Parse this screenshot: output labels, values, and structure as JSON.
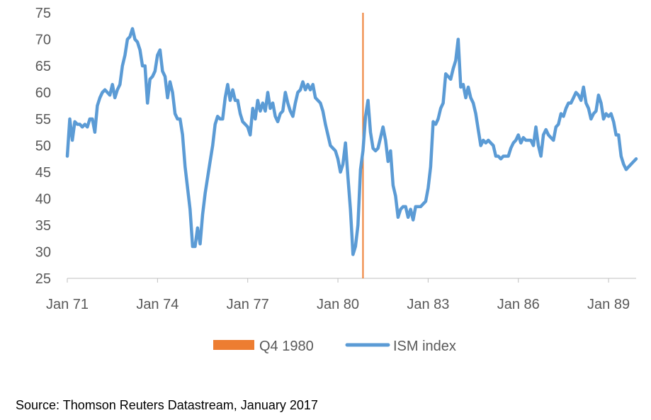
{
  "chart_data": {
    "type": "line",
    "title": "",
    "xlabel": "",
    "ylabel": "",
    "ylim": [
      25,
      75
    ],
    "y_ticks": [
      25,
      30,
      35,
      40,
      45,
      50,
      55,
      60,
      65,
      70,
      75
    ],
    "x_tick_labels": [
      "Jan 71",
      "Jan 74",
      "Jan 77",
      "Jan 80",
      "Jan 83",
      "Jan 86",
      "Jan 89"
    ],
    "x_ticks": [
      "1971-01",
      "1974-01",
      "1977-01",
      "1980-01",
      "1983-01",
      "1986-01",
      "1989-01"
    ],
    "x_range": [
      "1971-01",
      "1989-12"
    ],
    "grid": false,
    "legend": "bottom",
    "series": [
      {
        "name": "ISM index",
        "color": "#5B9BD5",
        "points": [
          [
            "1971-01",
            48
          ],
          [
            "1971-02",
            55
          ],
          [
            "1971-03",
            51
          ],
          [
            "1971-04",
            54.5
          ],
          [
            "1971-05",
            54
          ],
          [
            "1971-06",
            54
          ],
          [
            "1971-07",
            53.5
          ],
          [
            "1971-08",
            54
          ],
          [
            "1971-09",
            53.5
          ],
          [
            "1971-10",
            55
          ],
          [
            "1971-11",
            55
          ],
          [
            "1971-12",
            52.5
          ],
          [
            "1972-01",
            57.5
          ],
          [
            "1972-02",
            59
          ],
          [
            "1972-03",
            60
          ],
          [
            "1972-04",
            60.5
          ],
          [
            "1972-05",
            60
          ],
          [
            "1972-06",
            59.5
          ],
          [
            "1972-07",
            61.5
          ],
          [
            "1972-08",
            59
          ],
          [
            "1972-09",
            60.5
          ],
          [
            "1972-10",
            61.5
          ],
          [
            "1972-11",
            65
          ],
          [
            "1972-12",
            67
          ],
          [
            "1973-01",
            70
          ],
          [
            "1973-02",
            70.5
          ],
          [
            "1973-03",
            72
          ],
          [
            "1973-04",
            70
          ],
          [
            "1973-05",
            69.5
          ],
          [
            "1973-06",
            68
          ],
          [
            "1973-07",
            65
          ],
          [
            "1973-08",
            65
          ],
          [
            "1973-09",
            58
          ],
          [
            "1973-10",
            62.5
          ],
          [
            "1973-11",
            63
          ],
          [
            "1973-12",
            64
          ],
          [
            "1974-01",
            67
          ],
          [
            "1974-02",
            68
          ],
          [
            "1974-03",
            64
          ],
          [
            "1974-04",
            63
          ],
          [
            "1974-05",
            59
          ],
          [
            "1974-06",
            62
          ],
          [
            "1974-07",
            60
          ],
          [
            "1974-08",
            56
          ],
          [
            "1974-09",
            55
          ],
          [
            "1974-10",
            55
          ],
          [
            "1974-11",
            52
          ],
          [
            "1974-12",
            46
          ],
          [
            "1975-01",
            42
          ],
          [
            "1975-02",
            38
          ],
          [
            "1975-03",
            31
          ],
          [
            "1975-04",
            31
          ],
          [
            "1975-05",
            34.5
          ],
          [
            "1975-06",
            31.5
          ],
          [
            "1975-07",
            37
          ],
          [
            "1975-08",
            41
          ],
          [
            "1975-09",
            44
          ],
          [
            "1975-10",
            47
          ],
          [
            "1975-11",
            50
          ],
          [
            "1975-12",
            54
          ],
          [
            "1976-01",
            55.5
          ],
          [
            "1976-02",
            55
          ],
          [
            "1976-03",
            55
          ],
          [
            "1976-04",
            59
          ],
          [
            "1976-05",
            61.5
          ],
          [
            "1976-06",
            58.5
          ],
          [
            "1976-07",
            60.5
          ],
          [
            "1976-08",
            58.5
          ],
          [
            "1976-09",
            58.5
          ],
          [
            "1976-10",
            56
          ],
          [
            "1976-11",
            54.5
          ],
          [
            "1976-12",
            54
          ],
          [
            "1977-01",
            53.5
          ],
          [
            "1977-02",
            52
          ],
          [
            "1977-03",
            57
          ],
          [
            "1977-04",
            55
          ],
          [
            "1977-05",
            58.5
          ],
          [
            "1977-06",
            56.5
          ],
          [
            "1977-07",
            58
          ],
          [
            "1977-08",
            56.5
          ],
          [
            "1977-09",
            60
          ],
          [
            "1977-10",
            57
          ],
          [
            "1977-11",
            58
          ],
          [
            "1977-12",
            55.5
          ],
          [
            "1978-01",
            54.5
          ],
          [
            "1978-02",
            56
          ],
          [
            "1978-03",
            56.5
          ],
          [
            "1978-04",
            60
          ],
          [
            "1978-05",
            58
          ],
          [
            "1978-06",
            56.5
          ],
          [
            "1978-07",
            55.5
          ],
          [
            "1978-08",
            58
          ],
          [
            "1978-09",
            60
          ],
          [
            "1978-10",
            60.5
          ],
          [
            "1978-11",
            62
          ],
          [
            "1978-12",
            60.5
          ],
          [
            "1979-01",
            61.5
          ],
          [
            "1979-02",
            60.5
          ],
          [
            "1979-03",
            61.5
          ],
          [
            "1979-04",
            59
          ],
          [
            "1979-05",
            58.5
          ],
          [
            "1979-06",
            58
          ],
          [
            "1979-07",
            56.5
          ],
          [
            "1979-08",
            54
          ],
          [
            "1979-09",
            52
          ],
          [
            "1979-10",
            50
          ],
          [
            "1979-11",
            49.5
          ],
          [
            "1979-12",
            49
          ],
          [
            "1980-01",
            47.5
          ],
          [
            "1980-02",
            45
          ],
          [
            "1980-03",
            46.5
          ],
          [
            "1980-04",
            50.5
          ],
          [
            "1980-05",
            44
          ],
          [
            "1980-06",
            38
          ],
          [
            "1980-07",
            29.5
          ],
          [
            "1980-08",
            31
          ],
          [
            "1980-09",
            35
          ],
          [
            "1980-10",
            45.5
          ],
          [
            "1980-11",
            49
          ],
          [
            "1980-12",
            55.5
          ],
          [
            "1981-01",
            58.5
          ],
          [
            "1981-02",
            52.5
          ],
          [
            "1981-03",
            49.5
          ],
          [
            "1981-04",
            49
          ],
          [
            "1981-05",
            49.5
          ],
          [
            "1981-06",
            51.5
          ],
          [
            "1981-07",
            53.5
          ],
          [
            "1981-08",
            51
          ],
          [
            "1981-09",
            47
          ],
          [
            "1981-10",
            49
          ],
          [
            "1981-11",
            42.5
          ],
          [
            "1981-12",
            40.5
          ],
          [
            "1982-01",
            36.5
          ],
          [
            "1982-02",
            38
          ],
          [
            "1982-03",
            38.5
          ],
          [
            "1982-04",
            38.5
          ],
          [
            "1982-05",
            36.5
          ],
          [
            "1982-06",
            38
          ],
          [
            "1982-07",
            36
          ],
          [
            "1982-08",
            38.5
          ],
          [
            "1982-09",
            38.5
          ],
          [
            "1982-10",
            38.5
          ],
          [
            "1982-11",
            39
          ],
          [
            "1982-12",
            39.5
          ],
          [
            "1983-01",
            42
          ],
          [
            "1983-02",
            46
          ],
          [
            "1983-03",
            54.5
          ],
          [
            "1983-04",
            54
          ],
          [
            "1983-05",
            55
          ],
          [
            "1983-06",
            57
          ],
          [
            "1983-07",
            58
          ],
          [
            "1983-08",
            63.5
          ],
          [
            "1983-09",
            63
          ],
          [
            "1983-10",
            62.5
          ],
          [
            "1983-11",
            64.5
          ],
          [
            "1983-12",
            66
          ],
          [
            "1984-01",
            70
          ],
          [
            "1984-02",
            61
          ],
          [
            "1984-03",
            61.5
          ],
          [
            "1984-04",
            59
          ],
          [
            "1984-05",
            61
          ],
          [
            "1984-06",
            59
          ],
          [
            "1984-07",
            58
          ],
          [
            "1984-08",
            56
          ],
          [
            "1984-09",
            53
          ],
          [
            "1984-10",
            50
          ],
          [
            "1984-11",
            51
          ],
          [
            "1984-12",
            50.5
          ],
          [
            "1985-01",
            51
          ],
          [
            "1985-02",
            50.5
          ],
          [
            "1985-03",
            50
          ],
          [
            "1985-04",
            48
          ],
          [
            "1985-05",
            48
          ],
          [
            "1985-06",
            47.5
          ],
          [
            "1985-07",
            48
          ],
          [
            "1985-08",
            48
          ],
          [
            "1985-09",
            48
          ],
          [
            "1985-10",
            49.5
          ],
          [
            "1985-11",
            50.5
          ],
          [
            "1985-12",
            51
          ],
          [
            "1986-01",
            52
          ],
          [
            "1986-02",
            50.5
          ],
          [
            "1986-03",
            51.5
          ],
          [
            "1986-04",
            51
          ],
          [
            "1986-05",
            51
          ],
          [
            "1986-06",
            51
          ],
          [
            "1986-07",
            50
          ],
          [
            "1986-08",
            53.5
          ],
          [
            "1986-09",
            50
          ],
          [
            "1986-10",
            48
          ],
          [
            "1986-11",
            52
          ],
          [
            "1986-12",
            53
          ],
          [
            "1987-01",
            52
          ],
          [
            "1987-02",
            51.5
          ],
          [
            "1987-03",
            51
          ],
          [
            "1987-04",
            53.5
          ],
          [
            "1987-05",
            54
          ],
          [
            "1987-06",
            56
          ],
          [
            "1987-07",
            55.5
          ],
          [
            "1987-08",
            57
          ],
          [
            "1987-09",
            58
          ],
          [
            "1987-10",
            58
          ],
          [
            "1987-11",
            59
          ],
          [
            "1987-12",
            60
          ],
          [
            "1988-01",
            59.5
          ],
          [
            "1988-02",
            58.5
          ],
          [
            "1988-03",
            61
          ],
          [
            "1988-04",
            58
          ],
          [
            "1988-05",
            57
          ],
          [
            "1988-06",
            55
          ],
          [
            "1988-07",
            56
          ],
          [
            "1988-08",
            56.5
          ],
          [
            "1988-09",
            59.5
          ],
          [
            "1988-10",
            58
          ],
          [
            "1988-11",
            55
          ],
          [
            "1988-12",
            56
          ],
          [
            "1989-01",
            55.5
          ],
          [
            "1989-02",
            56
          ],
          [
            "1989-03",
            54.5
          ],
          [
            "1989-04",
            52
          ],
          [
            "1989-05",
            52
          ],
          [
            "1989-06",
            48
          ],
          [
            "1989-07",
            46.5
          ],
          [
            "1989-08",
            45.5
          ],
          [
            "1989-09",
            46
          ],
          [
            "1989-10",
            46.5
          ],
          [
            "1989-11",
            47
          ],
          [
            "1989-12",
            47.5
          ]
        ]
      }
    ],
    "marker_line": {
      "name": "Q4 1980",
      "x": "1980-11",
      "color": "#ED7D31"
    }
  },
  "legend": {
    "items": [
      {
        "label": "Q4 1980",
        "color": "#ED7D31",
        "kind": "bar"
      },
      {
        "label": "ISM index",
        "color": "#5B9BD5",
        "kind": "line"
      }
    ]
  },
  "source_note": "Source: Thomson Reuters Datastream, January 2017"
}
